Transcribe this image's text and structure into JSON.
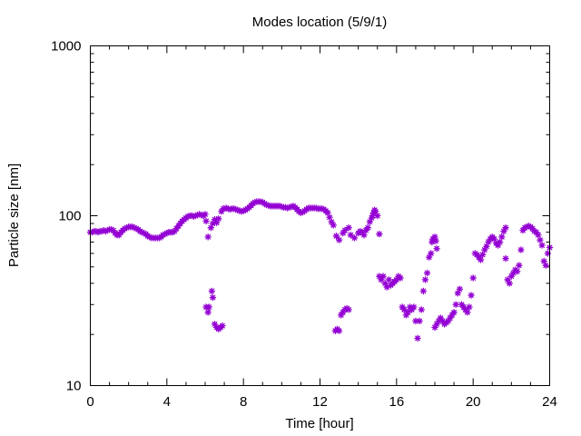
{
  "chart_data": {
    "type": "scatter",
    "title": "Modes location (5/9/1)",
    "xlabel": "Time [hour]",
    "ylabel": "Particle size [nm]",
    "xlim": [
      0,
      24
    ],
    "ylim": [
      10,
      1000
    ],
    "yscale": "log",
    "grid": false,
    "legend": "none",
    "marker": "asterisk",
    "color": "#9400d3",
    "xticks": [
      0,
      4,
      8,
      12,
      16,
      20,
      24
    ],
    "xtick_labels": [
      "0",
      "4",
      "8",
      "12",
      "16",
      "20",
      "24"
    ],
    "yticks": [
      10,
      100,
      1000
    ],
    "ytick_labels": [
      "10",
      "100",
      "1000"
    ],
    "series": [
      {
        "points": [
          [
            0.0,
            80
          ],
          [
            0.1,
            80
          ],
          [
            0.2,
            81
          ],
          [
            0.3,
            81
          ],
          [
            0.4,
            80
          ],
          [
            0.5,
            81
          ],
          [
            0.6,
            81
          ],
          [
            0.7,
            82
          ],
          [
            0.8,
            81
          ],
          [
            0.9,
            82
          ],
          [
            1.0,
            83
          ],
          [
            1.1,
            83
          ],
          [
            1.2,
            82
          ],
          [
            1.3,
            79
          ],
          [
            1.4,
            77
          ],
          [
            1.5,
            77
          ],
          [
            1.6,
            80
          ],
          [
            1.7,
            82
          ],
          [
            1.8,
            84
          ],
          [
            1.9,
            85
          ],
          [
            2.0,
            86
          ],
          [
            2.1,
            86
          ],
          [
            2.2,
            86
          ],
          [
            2.3,
            85
          ],
          [
            2.4,
            84
          ],
          [
            2.5,
            83
          ],
          [
            2.6,
            81
          ],
          [
            2.7,
            80
          ],
          [
            2.8,
            79
          ],
          [
            2.9,
            78
          ],
          [
            3.0,
            76
          ],
          [
            3.1,
            75
          ],
          [
            3.2,
            74
          ],
          [
            3.3,
            74
          ],
          [
            3.4,
            74
          ],
          [
            3.5,
            74
          ],
          [
            3.6,
            74
          ],
          [
            3.7,
            75
          ],
          [
            3.8,
            77
          ],
          [
            3.9,
            78
          ],
          [
            4.0,
            79
          ],
          [
            4.1,
            80
          ],
          [
            4.2,
            80
          ],
          [
            4.3,
            80
          ],
          [
            4.4,
            81
          ],
          [
            4.5,
            84
          ],
          [
            4.6,
            87
          ],
          [
            4.7,
            90
          ],
          [
            4.8,
            93
          ],
          [
            4.9,
            95
          ],
          [
            5.0,
            97
          ],
          [
            5.1,
            99
          ],
          [
            5.2,
            100
          ],
          [
            5.3,
            100
          ],
          [
            5.4,
            99
          ],
          [
            5.5,
            100
          ],
          [
            5.6,
            101
          ],
          [
            5.7,
            102
          ],
          [
            5.8,
            101
          ],
          [
            5.9,
            100
          ],
          [
            6.0,
            102
          ],
          [
            6.05,
            93
          ],
          [
            6.15,
            75
          ],
          [
            6.3,
            85
          ],
          [
            6.4,
            90
          ],
          [
            6.5,
            95
          ],
          [
            6.6,
            91
          ],
          [
            6.7,
            96
          ],
          [
            6.85,
            106
          ],
          [
            6.95,
            110
          ],
          [
            7.1,
            111
          ],
          [
            7.2,
            110
          ],
          [
            7.3,
            109
          ],
          [
            7.4,
            110
          ],
          [
            7.5,
            110
          ],
          [
            7.6,
            109
          ],
          [
            7.7,
            108
          ],
          [
            7.8,
            107
          ],
          [
            7.9,
            106
          ],
          [
            8.0,
            107
          ],
          [
            8.1,
            108
          ],
          [
            8.2,
            110
          ],
          [
            8.3,
            112
          ],
          [
            8.4,
            115
          ],
          [
            8.5,
            118
          ],
          [
            8.6,
            120
          ],
          [
            8.7,
            121
          ],
          [
            8.8,
            121
          ],
          [
            8.9,
            121
          ],
          [
            9.0,
            120
          ],
          [
            9.1,
            118
          ],
          [
            9.2,
            116
          ],
          [
            9.3,
            115
          ],
          [
            9.4,
            114
          ],
          [
            9.5,
            114
          ],
          [
            9.6,
            114
          ],
          [
            9.7,
            114
          ],
          [
            9.8,
            114
          ],
          [
            9.9,
            114
          ],
          [
            10.0,
            113
          ],
          [
            10.1,
            112
          ],
          [
            10.2,
            112
          ],
          [
            10.3,
            111
          ],
          [
            10.4,
            112
          ],
          [
            10.5,
            113
          ],
          [
            10.6,
            114
          ],
          [
            10.7,
            112
          ],
          [
            10.8,
            109
          ],
          [
            10.9,
            106
          ],
          [
            11.0,
            104
          ],
          [
            11.1,
            105
          ],
          [
            11.2,
            107
          ],
          [
            11.3,
            109
          ],
          [
            11.4,
            111
          ],
          [
            11.5,
            111
          ],
          [
            11.6,
            111
          ],
          [
            11.7,
            111
          ],
          [
            11.8,
            111
          ],
          [
            11.9,
            110
          ],
          [
            12.0,
            110
          ],
          [
            12.1,
            110
          ],
          [
            12.2,
            109
          ],
          [
            12.3,
            107
          ],
          [
            12.4,
            104
          ],
          [
            12.5,
            98
          ],
          [
            12.6,
            92
          ],
          [
            12.7,
            88
          ],
          [
            12.85,
            76
          ],
          [
            13.0,
            72
          ],
          [
            13.2,
            79
          ],
          [
            13.3,
            82
          ],
          [
            13.5,
            85
          ],
          [
            13.6,
            77
          ],
          [
            13.8,
            74
          ],
          [
            14.0,
            79
          ],
          [
            14.1,
            81
          ],
          [
            14.2,
            80
          ],
          [
            14.3,
            77
          ],
          [
            14.4,
            82
          ],
          [
            14.5,
            85
          ],
          [
            14.6,
            92
          ],
          [
            14.7,
            97
          ],
          [
            14.75,
            100
          ],
          [
            14.8,
            104
          ],
          [
            14.85,
            108
          ],
          [
            14.9,
            106
          ],
          [
            15.0,
            100
          ],
          [
            15.1,
            78
          ],
          [
            6.05,
            29
          ],
          [
            6.15,
            27
          ],
          [
            6.2,
            29
          ],
          [
            6.35,
            36
          ],
          [
            6.4,
            33
          ],
          [
            6.5,
            23
          ],
          [
            6.6,
            22
          ],
          [
            6.7,
            21.5
          ],
          [
            6.8,
            22
          ],
          [
            6.9,
            22.5
          ],
          [
            12.8,
            21
          ],
          [
            12.9,
            21.5
          ],
          [
            13.0,
            21
          ],
          [
            13.1,
            26
          ],
          [
            13.2,
            27
          ],
          [
            13.3,
            28
          ],
          [
            13.4,
            28.5
          ],
          [
            13.5,
            28
          ],
          [
            15.1,
            44
          ],
          [
            15.2,
            42
          ],
          [
            15.3,
            44
          ],
          [
            15.4,
            40
          ],
          [
            15.5,
            38
          ],
          [
            15.6,
            42
          ],
          [
            15.7,
            39
          ],
          [
            15.8,
            40
          ],
          [
            15.9,
            41
          ],
          [
            16.0,
            42
          ],
          [
            16.1,
            44
          ],
          [
            16.2,
            43
          ],
          [
            16.3,
            29
          ],
          [
            16.4,
            28
          ],
          [
            16.5,
            26
          ],
          [
            16.6,
            27
          ],
          [
            16.7,
            29
          ],
          [
            16.8,
            28
          ],
          [
            16.9,
            29
          ],
          [
            17.0,
            24
          ],
          [
            17.1,
            19
          ],
          [
            17.2,
            24
          ],
          [
            17.3,
            28
          ],
          [
            17.4,
            36
          ],
          [
            17.5,
            42
          ],
          [
            17.6,
            46
          ],
          [
            17.7,
            57
          ],
          [
            17.8,
            60
          ],
          [
            17.85,
            70
          ],
          [
            17.9,
            73
          ],
          [
            18.0,
            75
          ],
          [
            18.05,
            71
          ],
          [
            18.1,
            64
          ],
          [
            18.0,
            22
          ],
          [
            18.1,
            23
          ],
          [
            18.2,
            24
          ],
          [
            18.3,
            25
          ],
          [
            18.4,
            24
          ],
          [
            18.5,
            23
          ],
          [
            18.6,
            23.5
          ],
          [
            18.7,
            24
          ],
          [
            18.8,
            25
          ],
          [
            18.9,
            26
          ],
          [
            19.0,
            27
          ],
          [
            19.1,
            30
          ],
          [
            19.2,
            35
          ],
          [
            19.3,
            37
          ],
          [
            19.4,
            30
          ],
          [
            19.5,
            29
          ],
          [
            19.6,
            28
          ],
          [
            19.7,
            27
          ],
          [
            19.8,
            29
          ],
          [
            19.9,
            34
          ],
          [
            20.0,
            43
          ],
          [
            20.1,
            60
          ],
          [
            20.2,
            59
          ],
          [
            20.3,
            57
          ],
          [
            20.4,
            55
          ],
          [
            20.5,
            59
          ],
          [
            20.6,
            63
          ],
          [
            20.7,
            66
          ],
          [
            20.8,
            70
          ],
          [
            20.9,
            73
          ],
          [
            21.0,
            75
          ],
          [
            21.1,
            73
          ],
          [
            21.2,
            69
          ],
          [
            21.3,
            67
          ],
          [
            21.4,
            70
          ],
          [
            21.5,
            75
          ],
          [
            21.6,
            81
          ],
          [
            21.7,
            85
          ],
          [
            21.7,
            56
          ],
          [
            21.8,
            42
          ],
          [
            21.9,
            40
          ],
          [
            22.0,
            44
          ],
          [
            22.1,
            46
          ],
          [
            22.2,
            48
          ],
          [
            22.3,
            47
          ],
          [
            22.4,
            51
          ],
          [
            22.5,
            63
          ],
          [
            22.6,
            82
          ],
          [
            22.7,
            85
          ],
          [
            22.8,
            86
          ],
          [
            22.9,
            87
          ],
          [
            23.0,
            86
          ],
          [
            23.1,
            84
          ],
          [
            23.2,
            81
          ],
          [
            23.3,
            80
          ],
          [
            23.4,
            77
          ],
          [
            23.5,
            72
          ],
          [
            23.6,
            67
          ],
          [
            23.7,
            54
          ],
          [
            23.8,
            51
          ],
          [
            23.9,
            60
          ],
          [
            24.0,
            65
          ]
        ]
      }
    ]
  }
}
